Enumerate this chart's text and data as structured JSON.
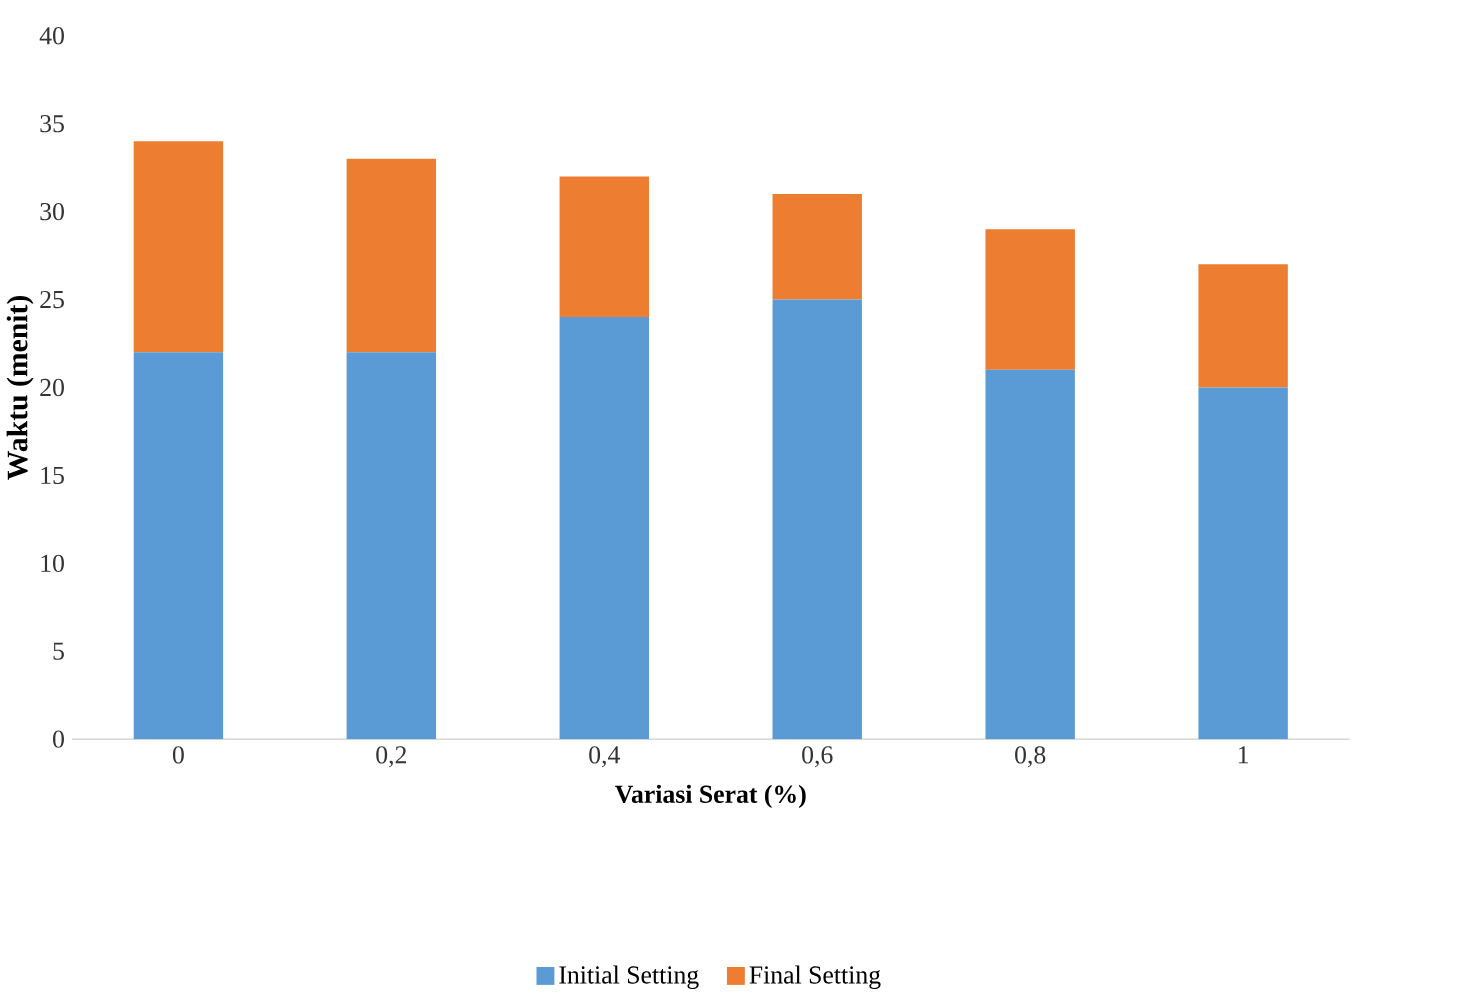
{
  "chart_data": {
    "type": "bar",
    "stacked": true,
    "xlabel": "Variasi Serat (%)",
    "ylabel": "Waktu (menit)",
    "categories": [
      "0",
      "0,2",
      "0,4",
      "0,6",
      "0,8",
      "1"
    ],
    "series": [
      {
        "name": "Initial Setting",
        "color": "#5b9bd5",
        "values": [
          22,
          22,
          24,
          25,
          21,
          20
        ]
      },
      {
        "name": "Final Setting",
        "color": "#ed7d31",
        "values": [
          12,
          11,
          8,
          6,
          8,
          7
        ]
      }
    ],
    "ylim": [
      0,
      40
    ],
    "yticks": [
      0,
      5,
      10,
      15,
      20,
      25,
      30,
      35,
      40
    ],
    "legend": "bottom"
  }
}
